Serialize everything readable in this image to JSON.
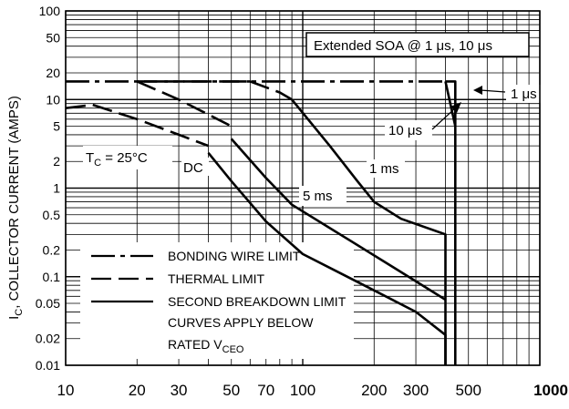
{
  "chart_data": {
    "type": "line",
    "title": "",
    "xlabel": "",
    "ylabel": "I_C, COLLECTOR CURRENT (AMPS)",
    "ylabel_main": "I",
    "ylabel_sub": "C",
    "ylabel_rest": ", COLLECTOR CURRENT (AMPS)",
    "xscale": "log",
    "yscale": "log",
    "xlim": [
      10,
      1000
    ],
    "ylim": [
      0.01,
      100
    ],
    "grid": true,
    "x_ticks": [
      {
        "value": 10,
        "label": "10"
      },
      {
        "value": 20,
        "label": "20"
      },
      {
        "value": 30,
        "label": "30"
      },
      {
        "value": 50,
        "label": "50"
      },
      {
        "value": 70,
        "label": "70"
      },
      {
        "value": 100,
        "label": "100"
      },
      {
        "value": 200,
        "label": "200"
      },
      {
        "value": 300,
        "label": "300"
      },
      {
        "value": 500,
        "label": "500"
      },
      {
        "value": 1000,
        "label": "1000"
      }
    ],
    "y_ticks": [
      {
        "value": 100,
        "label": "100"
      },
      {
        "value": 50,
        "label": "50"
      },
      {
        "value": 20,
        "label": "20"
      },
      {
        "value": 10,
        "label": "10"
      },
      {
        "value": 5,
        "label": "5"
      },
      {
        "value": 2,
        "label": "2"
      },
      {
        "value": 1,
        "label": "1"
      },
      {
        "value": 0.5,
        "label": "0.5"
      },
      {
        "value": 0.2,
        "label": "0.2"
      },
      {
        "value": 0.1,
        "label": "0.1"
      },
      {
        "value": 0.05,
        "label": "0.05"
      },
      {
        "value": 0.02,
        "label": "0.02"
      },
      {
        "value": 0.01,
        "label": "0.01"
      }
    ],
    "series": [
      {
        "style": "dash-dot",
        "points": [
          [
            10,
            16
          ],
          [
            400,
            16
          ]
        ]
      },
      {
        "style": "long-dash",
        "points": [
          [
            20,
            16
          ],
          [
            60,
            16
          ]
        ]
      },
      {
        "style": "long-dash",
        "points": [
          [
            60,
            16
          ],
          [
            80,
            12
          ],
          [
            90,
            10
          ]
        ]
      },
      {
        "style": "long-dash",
        "points": [
          [
            20,
            16
          ],
          [
            30,
            10
          ],
          [
            50,
            5
          ]
        ]
      },
      {
        "style": "long-dash",
        "points": [
          [
            10,
            8
          ],
          [
            13,
            8.7
          ],
          [
            20,
            6
          ],
          [
            30,
            4
          ],
          [
            40,
            3
          ]
        ]
      },
      {
        "style": "solid",
        "points": [
          [
            400,
            16
          ],
          [
            440,
            16
          ],
          [
            440,
            0.01
          ]
        ]
      },
      {
        "style": "solid",
        "points": [
          [
            400,
            16
          ],
          [
            440,
            5
          ]
        ]
      },
      {
        "style": "solid",
        "points": [
          [
            90,
            10
          ],
          [
            130,
            3
          ],
          [
            170,
            1.2
          ],
          [
            200,
            0.7
          ],
          [
            260,
            0.45
          ],
          [
            400,
            0.3
          ],
          [
            400,
            0.01
          ]
        ]
      },
      {
        "style": "solid",
        "points": [
          [
            50,
            3.6
          ],
          [
            70,
            1.3
          ],
          [
            90,
            0.65
          ],
          [
            150,
            0.28
          ],
          [
            250,
            0.12
          ],
          [
            400,
            0.055
          ]
        ]
      },
      {
        "style": "solid",
        "points": [
          [
            40,
            2.5
          ],
          [
            50,
            1.2
          ],
          [
            70,
            0.42
          ],
          [
            100,
            0.18
          ],
          [
            200,
            0.07
          ],
          [
            300,
            0.04
          ],
          [
            400,
            0.022
          ],
          [
            400,
            0.01
          ]
        ]
      }
    ],
    "annotations": [
      {
        "id": "ann-extended-soa",
        "text": "Extended SOA @ 1 μs, 10 μs",
        "boxed": true
      },
      {
        "id": "ann-1us",
        "text": "1 μs"
      },
      {
        "id": "ann-10us",
        "text": "10 μs"
      },
      {
        "id": "ann-1ms",
        "text": "1 ms"
      },
      {
        "id": "ann-5ms",
        "text": "5 ms"
      },
      {
        "id": "ann-dc",
        "text": "DC"
      },
      {
        "id": "ann-tc",
        "text_main": "T",
        "text_sub": "C",
        "text_rest": " = 25°C"
      }
    ],
    "legend": {
      "placement": "bottom-left",
      "entries": [
        {
          "style": "dash-dot",
          "label": "BONDING WIRE LIMIT"
        },
        {
          "style": "long-dash",
          "label": "THERMAL LIMIT"
        },
        {
          "style": "solid",
          "label": "SECOND BREAKDOWN LIMIT"
        }
      ],
      "note_line1": "CURVES APPLY BELOW",
      "note_line2_main": "RATED V",
      "note_line2_sub": "CEO"
    }
  }
}
